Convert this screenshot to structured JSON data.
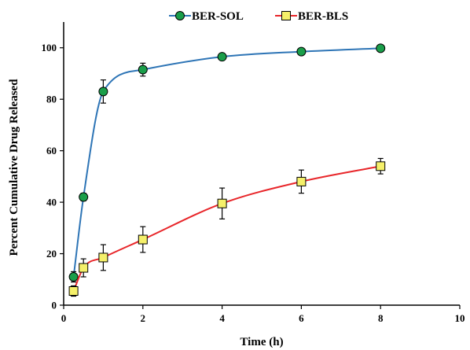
{
  "chart_data": {
    "type": "line",
    "title": "",
    "xlabel": "Time (h)",
    "ylabel": "Percent Cumulative Drug Released",
    "xlim": [
      0,
      10
    ],
    "ylim": [
      0,
      110
    ],
    "xticks": [
      "0",
      "2",
      "4",
      "6",
      "8",
      "10"
    ],
    "yticks": [
      "0",
      "20",
      "40",
      "60",
      "80",
      "100"
    ],
    "grid": false,
    "legend": "top-center",
    "series": [
      {
        "name": "BER-SOL",
        "color": "#2e75b6",
        "marker": "circle",
        "marker_fill": "#1a9e4a",
        "x": [
          0.25,
          0.5,
          1,
          2,
          4,
          6,
          8
        ],
        "y": [
          11,
          42,
          83,
          91.5,
          96.5,
          98.5,
          99.8
        ],
        "error": [
          2,
          1.5,
          4.5,
          2.5,
          1,
          1,
          0.8
        ]
      },
      {
        "name": "BER-BLS",
        "color": "#e8262a",
        "marker": "square",
        "marker_fill": "#f5f06a",
        "x": [
          0.25,
          0.5,
          1,
          2,
          4,
          6,
          8
        ],
        "y": [
          5.5,
          14.5,
          18.5,
          25.5,
          39.5,
          48,
          54
        ],
        "error": [
          2,
          3.5,
          5,
          5,
          6,
          4.5,
          3
        ]
      }
    ]
  }
}
